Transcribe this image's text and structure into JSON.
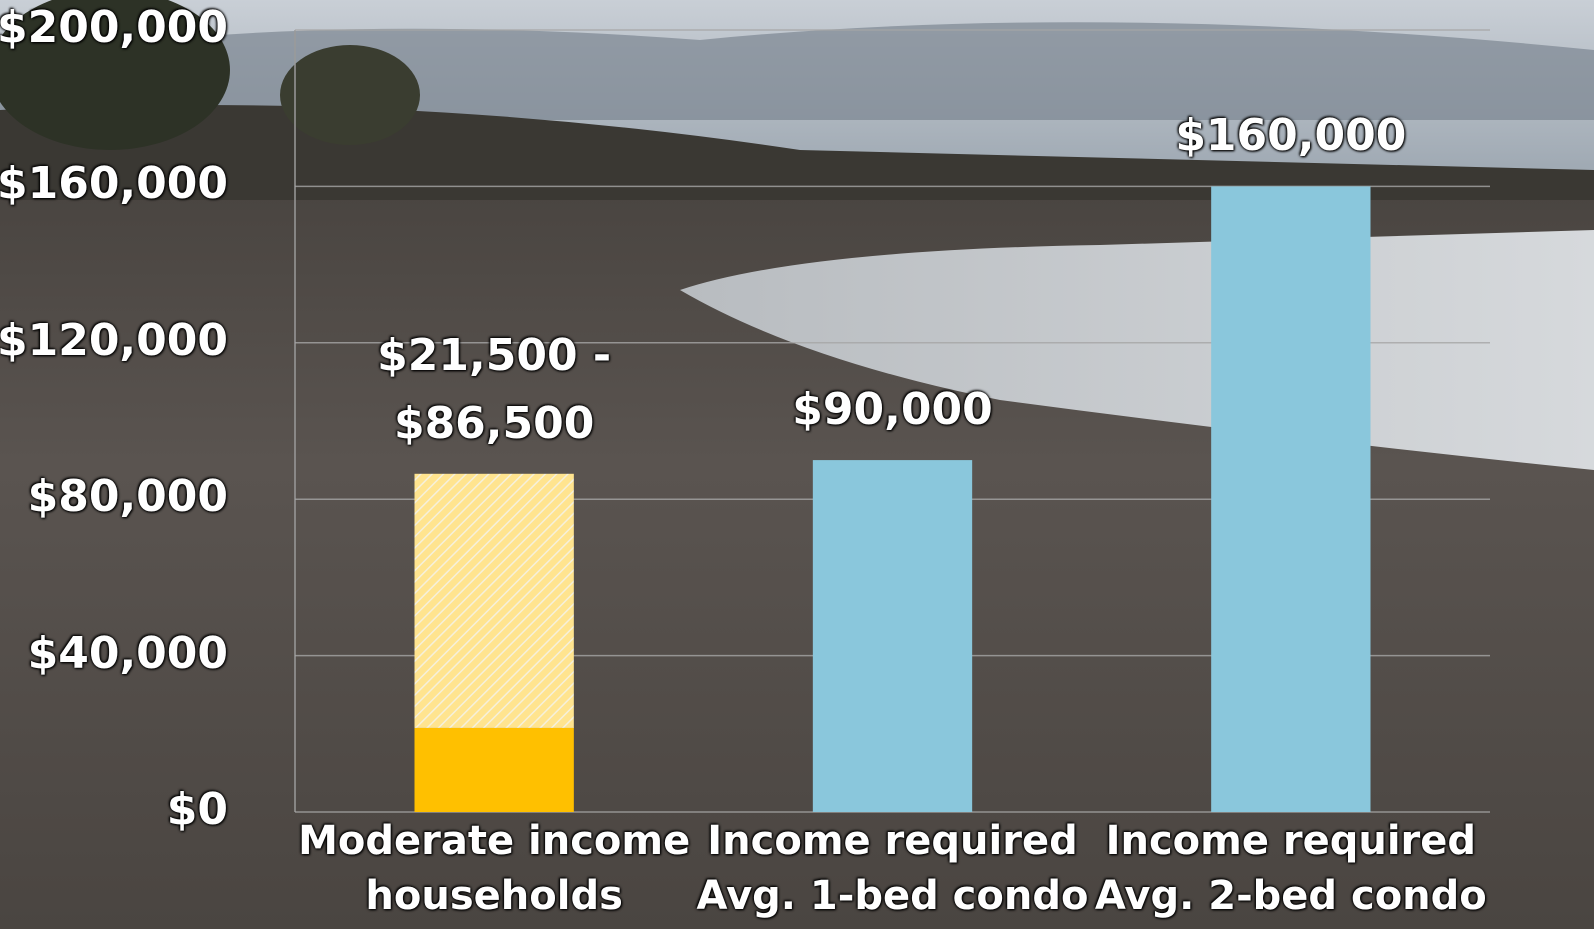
{
  "chart_data": {
    "type": "bar",
    "stacked": true,
    "categories": [
      "Moderate income\nhouseholds",
      "Income required\nAvg. 1-bed condo",
      "Income required\nAvg. 2-bed condo"
    ],
    "series": [
      {
        "colors": [
          "#ffc000",
          "#8ac7dc",
          "#8ac7dc"
        ],
        "values": [
          21500,
          90000,
          160000
        ]
      },
      {
        "color": "#ffe48f",
        "hatch": true,
        "values": [
          65000,
          null,
          null
        ]
      }
    ],
    "value_labels": [
      "$21,500 -\n$86,500",
      "$90,000",
      "$160,000"
    ],
    "ylim": [
      0,
      200000
    ],
    "yticks": [
      {
        "value": 0,
        "label": "$0"
      },
      {
        "value": 40000,
        "label": "$40,000"
      },
      {
        "value": 80000,
        "label": "$80,000"
      },
      {
        "value": 120000,
        "label": "$120,000"
      },
      {
        "value": 160000,
        "label": "$160,000"
      },
      {
        "value": 200000,
        "label": "$200,000"
      }
    ],
    "grid": true
  }
}
